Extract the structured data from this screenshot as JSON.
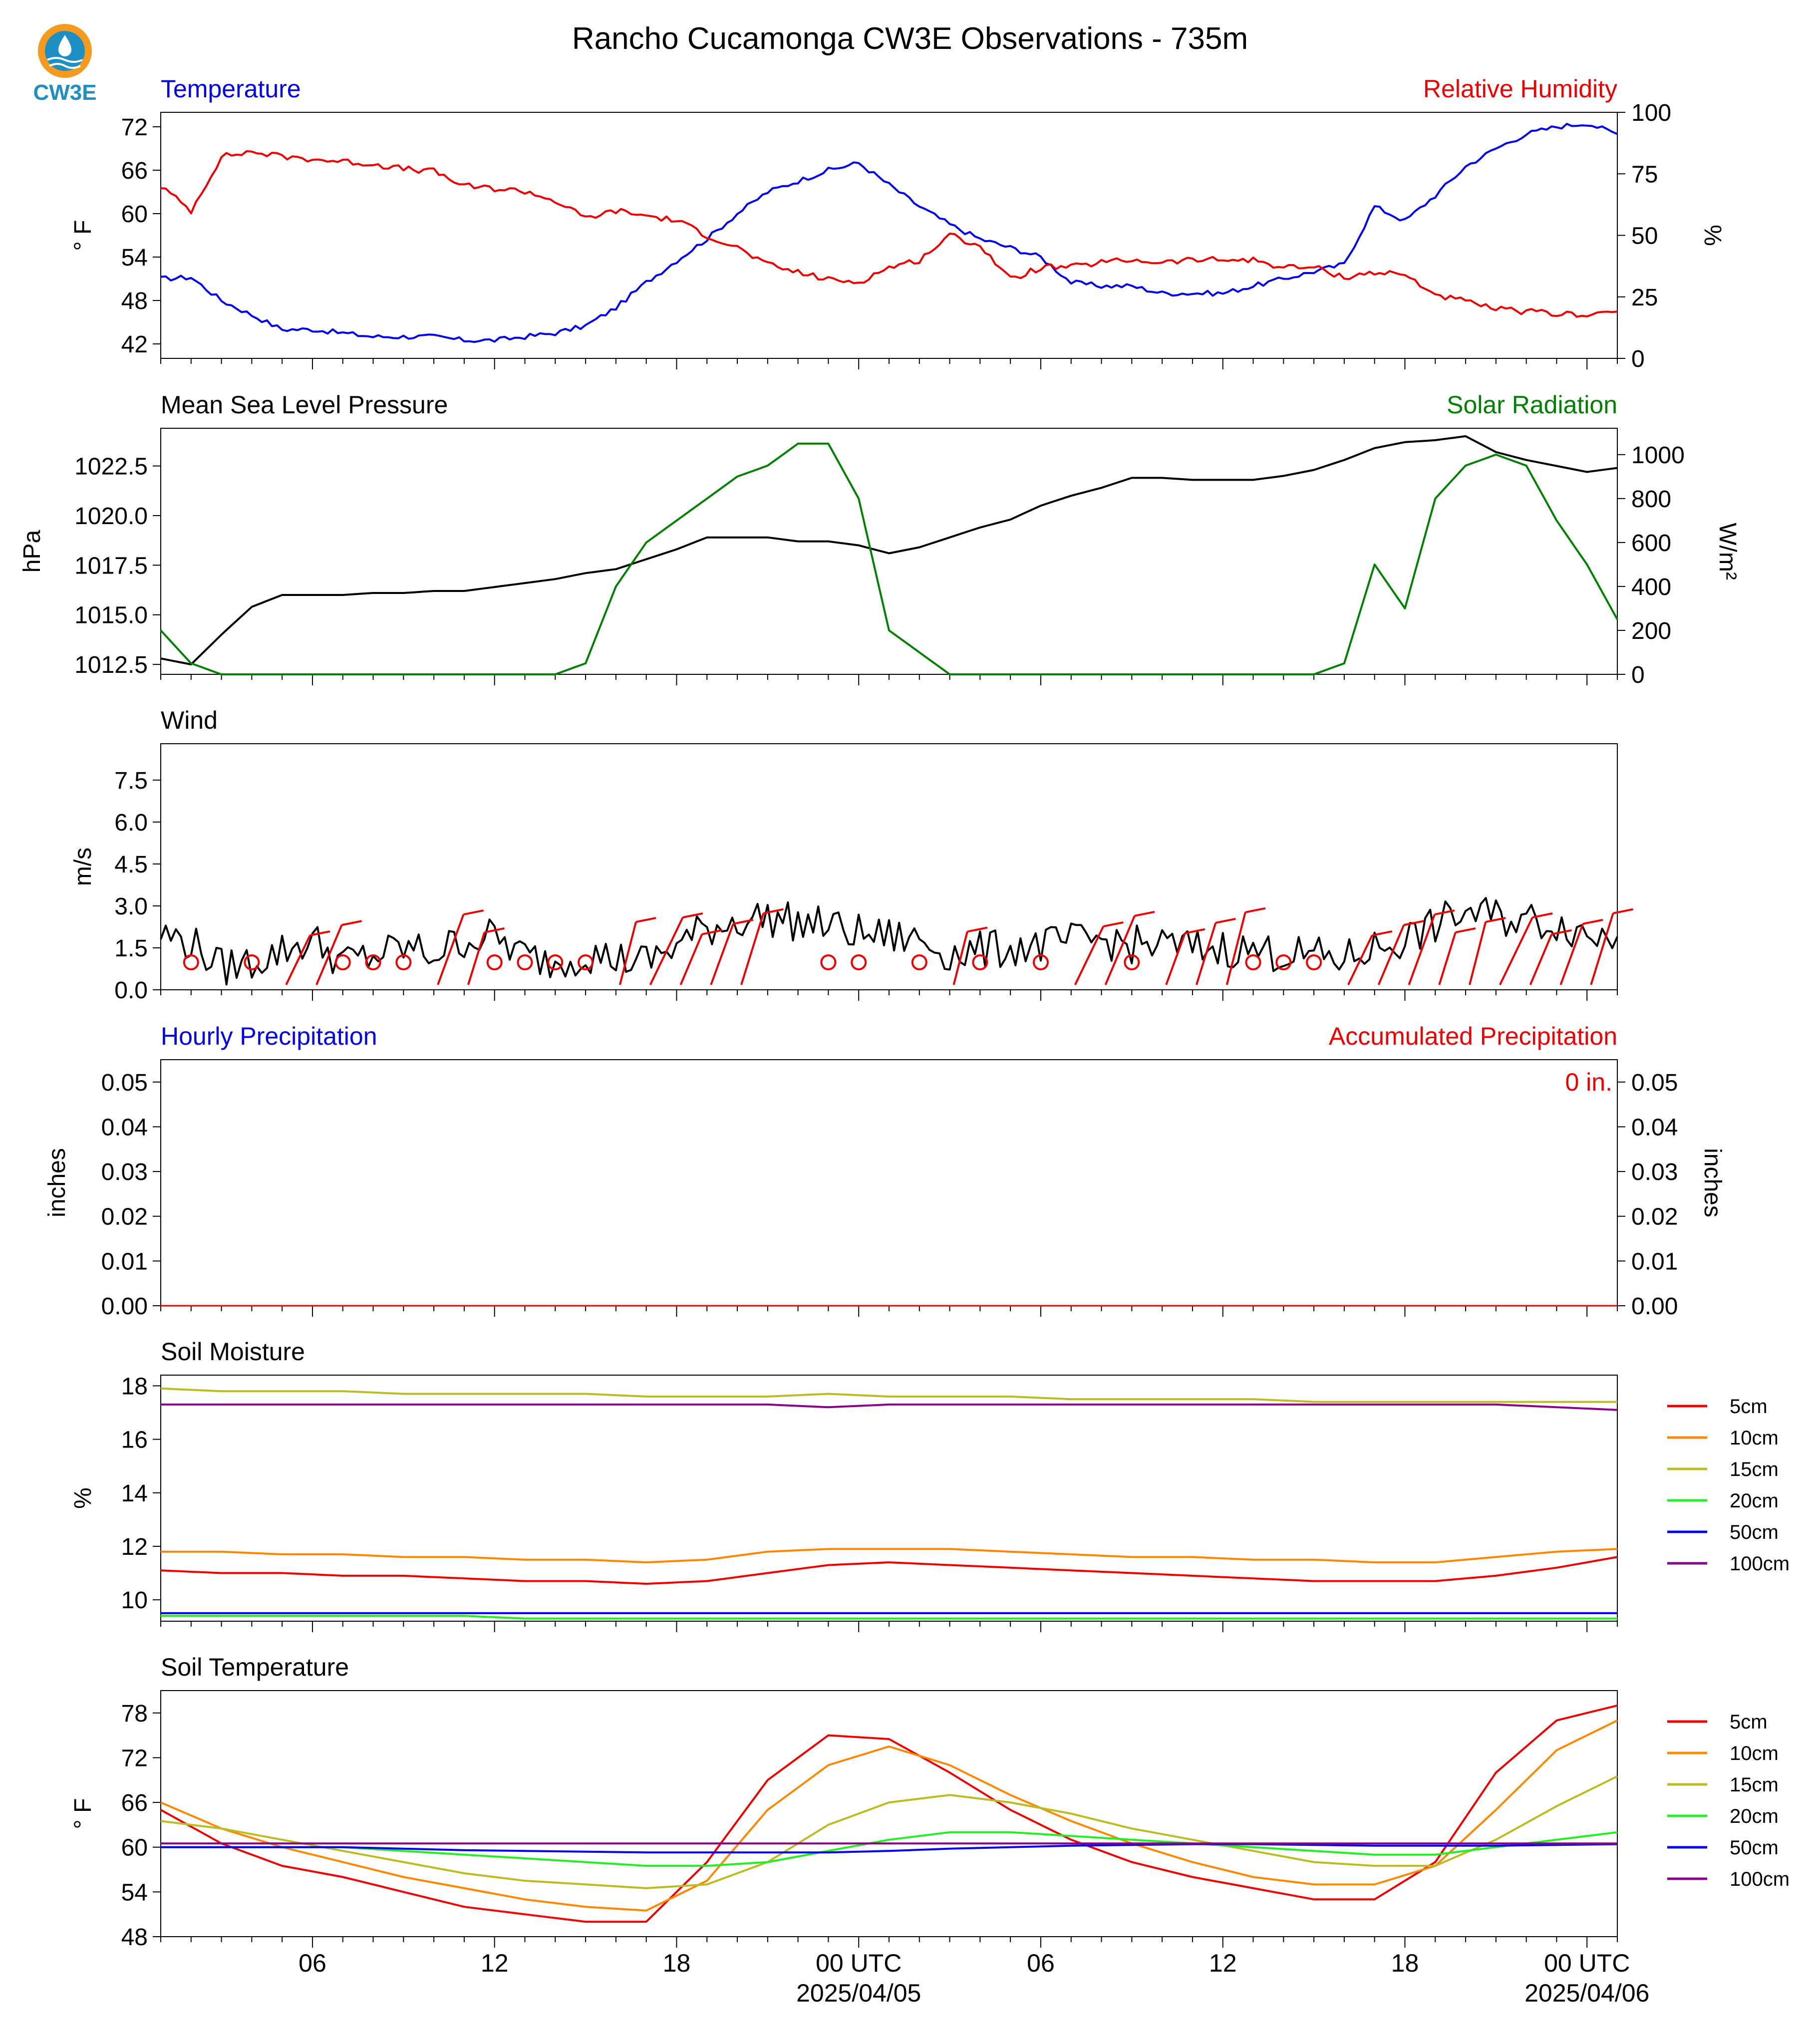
{
  "page": {
    "title": "Rancho Cucamonga CW3E Observations - 735m",
    "logo_text": "CW3E",
    "colors": {
      "temperature": "#0000ee",
      "humidity": "#ee0000",
      "pressure": "#000000",
      "solar": "#008000",
      "wind": "#000000",
      "barb": "#ee0000",
      "accum": "#ee0000",
      "hourly": "#0000ee"
    }
  },
  "time_axis": {
    "ticks": [
      "06",
      "12",
      "18",
      "00 UTC",
      "06",
      "12",
      "18",
      "00 UTC"
    ],
    "dates": [
      "2025/04/05",
      "2025/04/06"
    ]
  },
  "chart_data": [
    {
      "type": "line",
      "id": "temp_rh",
      "title_left": "Temperature",
      "title_right": "Relative Humidity",
      "ylabel": "° F",
      "ylabel2": "%",
      "ylim": [
        40,
        74
      ],
      "ylim2": [
        0,
        100
      ],
      "yticks": [
        "42",
        "48",
        "54",
        "60",
        "66",
        "72"
      ],
      "yticks2": [
        "0",
        "25",
        "50",
        "75",
        "100"
      ],
      "x_hours": [
        0,
        1,
        2,
        3,
        4,
        5,
        6,
        7,
        8,
        9,
        10,
        11,
        12,
        13,
        14,
        15,
        16,
        17,
        18,
        19,
        20,
        21,
        22,
        23,
        24,
        25,
        26,
        27,
        28,
        29,
        30,
        31,
        32,
        33,
        34,
        35,
        36,
        37,
        38,
        39,
        40,
        41,
        42,
        43,
        44,
        45,
        46,
        47,
        48
      ],
      "series": [
        {
          "name": "Temperature",
          "axis": "left",
          "color": "#0000ee",
          "values": [
            51,
            51.2,
            48,
            46,
            44,
            44,
            43.5,
            43,
            43,
            43,
            42.5,
            42.5,
            43,
            43.5,
            44.5,
            47,
            50.5,
            53.5,
            56.5,
            60,
            63,
            64.5,
            66,
            67,
            64,
            61,
            58.5,
            56.5,
            55.3,
            54,
            50.5,
            50,
            50,
            49,
            49,
            49,
            50,
            51,
            52,
            53,
            61,
            59,
            62.5,
            66.5,
            69,
            71,
            72,
            72.5,
            71
          ]
        },
        {
          "name": "Relative Humidity",
          "axis": "right",
          "color": "#ee0000",
          "values": [
            70,
            60,
            82,
            84,
            82,
            81,
            80,
            79,
            77,
            76,
            70,
            69,
            68,
            64,
            57,
            60,
            58,
            56,
            50,
            45,
            38,
            35,
            32,
            31,
            37,
            40,
            50,
            46,
            32,
            37,
            37,
            39,
            40,
            39,
            40,
            40,
            40,
            37,
            37,
            33,
            35,
            34,
            26,
            23,
            20,
            19,
            18,
            18,
            19
          ]
        }
      ]
    },
    {
      "type": "line",
      "id": "mslp_solar",
      "title_left": "Mean Sea Level Pressure",
      "title_right": "Solar Radiation",
      "ylabel": "hPa",
      "ylabel2": "W/m²",
      "ylim": [
        1012,
        1024.4
      ],
      "ylim2": [
        0,
        1120
      ],
      "yticks": [
        "1012.5",
        "1015.0",
        "1017.5",
        "1020.0",
        "1022.5"
      ],
      "yticks2": [
        "0",
        "200",
        "400",
        "600",
        "800",
        "1000"
      ],
      "x_hours": [
        0,
        1,
        2,
        3,
        4,
        5,
        6,
        7,
        8,
        9,
        10,
        11,
        12,
        13,
        14,
        15,
        16,
        17,
        18,
        19,
        20,
        21,
        22,
        23,
        24,
        25,
        26,
        27,
        28,
        29,
        30,
        31,
        32,
        33,
        34,
        35,
        36,
        37,
        38,
        39,
        40,
        41,
        42,
        43,
        44,
        45,
        46,
        47,
        48
      ],
      "series": [
        {
          "name": "Mean Sea Level Pressure",
          "axis": "left",
          "color": "#000000",
          "values": [
            1012.8,
            1012.5,
            1014,
            1015.4,
            1016,
            1016,
            1016,
            1016.1,
            1016.1,
            1016.2,
            1016.2,
            1016.4,
            1016.6,
            1016.8,
            1017.1,
            1017.3,
            1017.8,
            1018.3,
            1018.9,
            1018.9,
            1018.9,
            1018.7,
            1018.7,
            1018.5,
            1018.1,
            1018.4,
            1018.9,
            1019.4,
            1019.8,
            1020.5,
            1021,
            1021.4,
            1021.9,
            1021.9,
            1021.8,
            1021.8,
            1021.8,
            1022,
            1022.3,
            1022.8,
            1023.4,
            1023.7,
            1023.8,
            1024,
            1023.2,
            1022.8,
            1022.5,
            1022.2,
            1022.4
          ]
        },
        {
          "name": "Solar Radiation",
          "axis": "right",
          "color": "#008000",
          "values": [
            200,
            50,
            0,
            0,
            0,
            0,
            0,
            0,
            0,
            0,
            0,
            0,
            0,
            0,
            50,
            400,
            600,
            700,
            800,
            900,
            950,
            1050,
            1050,
            800,
            200,
            100,
            0,
            0,
            0,
            0,
            0,
            0,
            0,
            0,
            0,
            0,
            0,
            0,
            0,
            50,
            500,
            300,
            800,
            950,
            1000,
            950,
            700,
            500,
            250
          ]
        }
      ]
    },
    {
      "type": "line",
      "id": "wind",
      "title_left": "Wind",
      "ylabel": "m/s",
      "ylim": [
        0,
        8.8
      ],
      "yticks": [
        "0.0",
        "1.5",
        "3.0",
        "4.5",
        "6.0",
        "7.5"
      ],
      "x_hours": [
        0,
        1,
        2,
        3,
        4,
        5,
        6,
        7,
        8,
        9,
        10,
        11,
        12,
        13,
        14,
        15,
        16,
        17,
        18,
        19,
        20,
        21,
        22,
        23,
        24,
        25,
        26,
        27,
        28,
        29,
        30,
        31,
        32,
        33,
        34,
        35,
        36,
        37,
        38,
        39,
        40,
        41,
        42,
        43,
        44,
        45,
        46,
        47,
        48
      ],
      "series": [
        {
          "name": "Wind Speed",
          "axis": "left",
          "color": "#000000",
          "values": [
            2,
            1.7,
            0.8,
            1.0,
            1.4,
            1.8,
            1.0,
            1.2,
            1.5,
            1.3,
            1.8,
            1.9,
            1.2,
            1.0,
            1.3,
            1.1,
            1.0,
            1.6,
            2.2,
            2.5,
            2.6,
            2.4,
            2.3,
            2.0,
            1.9,
            1.8,
            1.3,
            1.4,
            1.5,
            1.6,
            1.7,
            1.8,
            1.6,
            1.6,
            1.5,
            1.5,
            1.4,
            1.3,
            1.2,
            1.1,
            1.5,
            1.8,
            2.3,
            2.8,
            2.6,
            2.5,
            2.4,
            2.0,
            1.9
          ]
        }
      ],
      "barbs": {
        "calm_hours": [
          1,
          3,
          6,
          7,
          8,
          11,
          12,
          13,
          14,
          22,
          23,
          25,
          27,
          29,
          32,
          36,
          37,
          38
        ],
        "flag_hours": [
          4,
          5,
          9,
          10,
          15,
          16,
          17,
          18,
          19,
          26,
          30,
          31,
          33,
          34,
          35,
          39,
          40,
          41,
          42,
          43,
          44,
          45,
          46,
          47
        ]
      }
    },
    {
      "type": "line",
      "id": "precip",
      "title_left": "Hourly Precipitation",
      "title_right": "Accumulated Precipitation",
      "ylabel": "inches",
      "ylabel2": "inches",
      "ylim": [
        0,
        0.055
      ],
      "ylim2": [
        0,
        0.055
      ],
      "yticks": [
        "0.00",
        "0.01",
        "0.02",
        "0.03",
        "0.04",
        "0.05"
      ],
      "yticks2": [
        "0.00",
        "0.01",
        "0.02",
        "0.03",
        "0.04",
        "0.05"
      ],
      "annotation": "0 in.",
      "x_hours": [
        0,
        48
      ],
      "series": [
        {
          "name": "Accumulated Precipitation",
          "axis": "right",
          "color": "#ee0000",
          "values": [
            0,
            0
          ]
        }
      ]
    },
    {
      "type": "line",
      "id": "soil_moisture",
      "title_left": "Soil Moisture",
      "ylabel": "%",
      "ylim": [
        9.2,
        18.4
      ],
      "yticks": [
        "10",
        "12",
        "14",
        "16",
        "18"
      ],
      "x_hours": [
        0,
        2,
        4,
        6,
        8,
        10,
        12,
        14,
        16,
        18,
        20,
        22,
        24,
        26,
        28,
        30,
        32,
        34,
        36,
        38,
        40,
        42,
        44,
        46,
        48
      ],
      "series": [
        {
          "name": "5cm",
          "color": "#ee0000",
          "values": [
            11.1,
            11.0,
            11.0,
            10.9,
            10.9,
            10.8,
            10.7,
            10.7,
            10.6,
            10.7,
            11.0,
            11.3,
            11.4,
            11.3,
            11.2,
            11.1,
            11.0,
            10.9,
            10.8,
            10.7,
            10.7,
            10.7,
            10.9,
            11.2,
            11.6
          ]
        },
        {
          "name": "10cm",
          "color": "#ff8800",
          "values": [
            11.8,
            11.8,
            11.7,
            11.7,
            11.6,
            11.6,
            11.5,
            11.5,
            11.4,
            11.5,
            11.8,
            11.9,
            11.9,
            11.9,
            11.8,
            11.7,
            11.6,
            11.6,
            11.5,
            11.5,
            11.4,
            11.4,
            11.6,
            11.8,
            11.9
          ]
        },
        {
          "name": "15cm",
          "color": "#bbbb22",
          "values": [
            17.9,
            17.8,
            17.8,
            17.8,
            17.7,
            17.7,
            17.7,
            17.7,
            17.6,
            17.6,
            17.6,
            17.7,
            17.6,
            17.6,
            17.6,
            17.5,
            17.5,
            17.5,
            17.5,
            17.4,
            17.4,
            17.4,
            17.4,
            17.4,
            17.4
          ]
        },
        {
          "name": "20cm",
          "color": "#22ee22",
          "values": [
            9.4,
            9.4,
            9.4,
            9.4,
            9.4,
            9.4,
            9.3,
            9.3,
            9.3,
            9.3,
            9.3,
            9.3,
            9.3,
            9.3,
            9.3,
            9.3,
            9.3,
            9.3,
            9.3,
            9.3,
            9.3,
            9.3,
            9.3,
            9.3,
            9.3
          ]
        },
        {
          "name": "50cm",
          "color": "#0000ee",
          "values": [
            9.5,
            9.5,
            9.5,
            9.5,
            9.5,
            9.5,
            9.5,
            9.5,
            9.5,
            9.5,
            9.5,
            9.5,
            9.5,
            9.5,
            9.5,
            9.5,
            9.5,
            9.5,
            9.5,
            9.5,
            9.5,
            9.5,
            9.5,
            9.5,
            9.5
          ]
        },
        {
          "name": "100cm",
          "color": "#880088",
          "values": [
            17.3,
            17.3,
            17.3,
            17.3,
            17.3,
            17.3,
            17.3,
            17.3,
            17.3,
            17.3,
            17.3,
            17.2,
            17.3,
            17.3,
            17.3,
            17.3,
            17.3,
            17.3,
            17.3,
            17.3,
            17.3,
            17.3,
            17.3,
            17.2,
            17.1
          ]
        }
      ],
      "legend": [
        "5cm",
        "10cm",
        "15cm",
        "20cm",
        "50cm",
        "100cm"
      ]
    },
    {
      "type": "line",
      "id": "soil_temp",
      "title_left": "Soil Temperature",
      "ylabel": "° F",
      "ylim": [
        48,
        81
      ],
      "yticks": [
        "48",
        "54",
        "60",
        "66",
        "72",
        "78"
      ],
      "x_hours": [
        0,
        2,
        4,
        6,
        8,
        10,
        12,
        14,
        16,
        18,
        20,
        22,
        24,
        26,
        28,
        30,
        32,
        34,
        36,
        38,
        40,
        42,
        44,
        46,
        48
      ],
      "series": [
        {
          "name": "5cm",
          "color": "#ee0000",
          "values": [
            65,
            60.5,
            57.5,
            56,
            54,
            52,
            51,
            50,
            50,
            58,
            69,
            75,
            74.5,
            70,
            65,
            61,
            58,
            56,
            54.5,
            53,
            53,
            58,
            70,
            77,
            79
          ]
        },
        {
          "name": "10cm",
          "color": "#ff8800",
          "values": [
            66,
            62.5,
            60,
            58,
            56,
            54.5,
            53,
            52,
            51.5,
            55.5,
            65,
            71,
            73.5,
            71,
            67,
            63.5,
            60.5,
            58,
            56,
            55,
            55,
            57.5,
            65,
            73,
            77
          ]
        },
        {
          "name": "15cm",
          "color": "#bbbb22",
          "values": [
            63.5,
            62.5,
            61,
            59.5,
            58,
            56.5,
            55.5,
            55,
            54.5,
            55,
            58,
            63,
            66,
            67,
            66,
            64.5,
            62.5,
            61,
            59.5,
            58,
            57.5,
            57.5,
            61,
            65.5,
            69.5
          ]
        },
        {
          "name": "20cm",
          "color": "#22ee22",
          "values": [
            60,
            60,
            60,
            60,
            59.5,
            59,
            58.5,
            58,
            57.5,
            57.5,
            58,
            59.5,
            61,
            62,
            62,
            61.5,
            61,
            60.5,
            60,
            59.5,
            59,
            59,
            60,
            61,
            62
          ]
        },
        {
          "name": "50cm",
          "color": "#0000ee",
          "values": [
            60,
            60,
            60,
            60,
            59.8,
            59.6,
            59.5,
            59.4,
            59.3,
            59.3,
            59.3,
            59.3,
            59.5,
            59.8,
            60,
            60.2,
            60.3,
            60.4,
            60.4,
            60.3,
            60.2,
            60.2,
            60.2,
            60.3,
            60.4
          ]
        },
        {
          "name": "100cm",
          "color": "#880088",
          "values": [
            60.5,
            60.5,
            60.5,
            60.5,
            60.5,
            60.5,
            60.5,
            60.5,
            60.5,
            60.5,
            60.5,
            60.5,
            60.5,
            60.5,
            60.5,
            60.5,
            60.5,
            60.5,
            60.5,
            60.5,
            60.5,
            60.5,
            60.5,
            60.5,
            60.5
          ]
        }
      ],
      "legend": [
        "5cm",
        "10cm",
        "15cm",
        "20cm",
        "50cm",
        "100cm"
      ]
    }
  ]
}
